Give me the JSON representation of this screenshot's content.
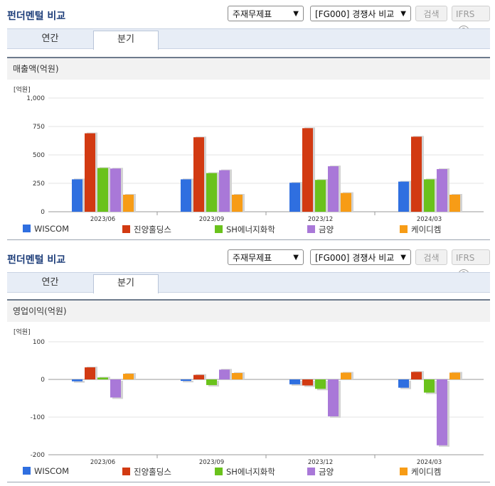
{
  "sections": [
    {
      "title": "펀더멘털 비교",
      "select1": "주재무제표",
      "select2": "[FG000] 경쟁사 비교",
      "search_label": "검색",
      "ifrs_label": "IFRS",
      "help_symbol": "?",
      "tabs": [
        "연간",
        "분기"
      ],
      "active_tab": "분기",
      "panel_title": "매출액(억원)",
      "unit_label": "[억원]"
    },
    {
      "title": "펀더멘털 비교",
      "select1": "주재무제표",
      "select2": "[FG000] 경쟁사 비교",
      "search_label": "검색",
      "ifrs_label": "IFRS",
      "help_symbol": "?",
      "tabs": [
        "연간",
        "분기"
      ],
      "active_tab": "분기",
      "panel_title": "영업이익(억원)",
      "unit_label": "[억원]"
    }
  ],
  "colors": {
    "WISCOM": "#2f6fe0",
    "진양홀딩스": "#d23a12",
    "SH에너지화학": "#6ac21c",
    "금양": "#a978d8",
    "케이디켐": "#f79c16"
  },
  "chart_data": [
    {
      "type": "bar",
      "title": "매출액(억원)",
      "ylabel": "[억원]",
      "categories": [
        "2023/06",
        "2023/09",
        "2023/12",
        "2024/03"
      ],
      "yticks": [
        0,
        250,
        500,
        750,
        1000
      ],
      "ytick_labels": [
        "0",
        "250",
        "500",
        "750",
        "1,000"
      ],
      "ylim": [
        0,
        1000
      ],
      "series": [
        {
          "name": "WISCOM",
          "values": [
            285,
            285,
            255,
            265
          ]
        },
        {
          "name": "진양홀딩스",
          "values": [
            690,
            655,
            735,
            660
          ]
        },
        {
          "name": "SH에너지화학",
          "values": [
            385,
            340,
            280,
            285
          ]
        },
        {
          "name": "금양",
          "values": [
            380,
            365,
            400,
            375
          ]
        },
        {
          "name": "케이디켐",
          "values": [
            150,
            150,
            165,
            150
          ]
        }
      ]
    },
    {
      "type": "bar",
      "title": "영업이익(억원)",
      "ylabel": "[억원]",
      "categories": [
        "2023/06",
        "2023/09",
        "2023/12",
        "2024/03"
      ],
      "yticks": [
        -200,
        -100,
        0,
        100
      ],
      "ytick_labels": [
        "-200",
        "-100",
        "0",
        "100"
      ],
      "ylim": [
        -200,
        100
      ],
      "series": [
        {
          "name": "WISCOM",
          "values": [
            -5,
            -4,
            -13,
            -22
          ]
        },
        {
          "name": "진양홀딩스",
          "values": [
            32,
            12,
            -16,
            20
          ]
        },
        {
          "name": "SH에너지화학",
          "values": [
            5,
            -15,
            -25,
            -35
          ]
        },
        {
          "name": "금양",
          "values": [
            -48,
            26,
            -98,
            -175
          ]
        },
        {
          "name": "케이디켐",
          "values": [
            15,
            17,
            18,
            18
          ]
        }
      ]
    }
  ]
}
